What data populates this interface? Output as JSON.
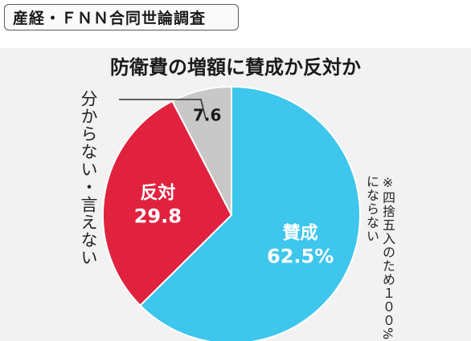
{
  "header": {
    "title": "産経・ＦＮＮ合同世論調査"
  },
  "chart_data": {
    "type": "pie",
    "title": "防衛費の増額に賛成か反対か",
    "slices": [
      {
        "label": "賛成",
        "value": 62.5,
        "value_text": "62.5%",
        "color": "#3ec6ec",
        "text_color": "#ffffff"
      },
      {
        "label": "反対",
        "value": 29.8,
        "value_text": "29.8",
        "color": "#e0223f",
        "text_color": "#ffffff"
      },
      {
        "label": "分からない・言えない",
        "value": 7.6,
        "value_text": "7.6",
        "color": "#c8c8c8",
        "text_color": "#1a1a1a"
      }
    ],
    "note": "※四捨五入のため１００%にならない"
  }
}
